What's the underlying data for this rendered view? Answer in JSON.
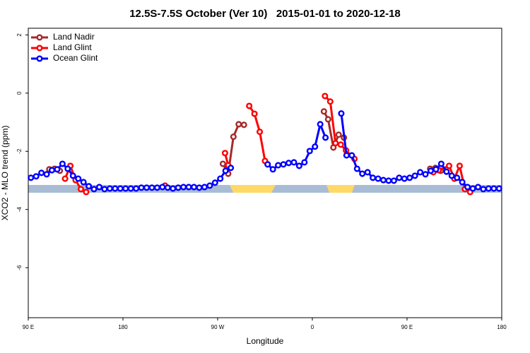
{
  "chart_data": {
    "type": "line",
    "title": "12.5S-7.5S October (Ver 10)   2015-01-01 to 2020-12-18",
    "xlabel": "Longitude",
    "ylabel": "XCO2 - MLO trend (ppm)",
    "xlim": [
      90,
      540
    ],
    "ylim": [
      -7.72,
      2.23
    ],
    "xticks": [
      {
        "value": 90,
        "label": "90 E"
      },
      {
        "value": 180,
        "label": "180"
      },
      {
        "value": 270,
        "label": "90 W"
      },
      {
        "value": 360,
        "label": "0"
      },
      {
        "value": 450,
        "label": "90 E"
      },
      {
        "value": 540,
        "label": "180"
      }
    ],
    "yticks": [
      2,
      0,
      -2,
      -4,
      -6
    ],
    "legend": "top-left",
    "series": [
      {
        "name": "Land Nadir",
        "color": "#a52a2a",
        "x": [
          110,
          115,
          120,
          null,
          275,
          280,
          285,
          290,
          295,
          null,
          371,
          375,
          380,
          385,
          390,
          null,
          472,
          477,
          482
        ],
        "values": [
          -2.62,
          -2.6,
          -2.67,
          null,
          -2.43,
          -2.77,
          -1.5,
          -1.07,
          -1.09,
          null,
          -0.63,
          -0.9,
          -1.87,
          -1.43,
          -1.53,
          null,
          -2.6,
          -2.57,
          -2.67
        ]
      },
      {
        "name": "Land Glint",
        "color": "#ff0000",
        "x": [
          125,
          130,
          135,
          140,
          145,
          null,
          220,
          null,
          277,
          280,
          null,
          300,
          305,
          310,
          315,
          317.5,
          null,
          372,
          377,
          382,
          387,
          392,
          400,
          null,
          475,
          480,
          490,
          495,
          500,
          505,
          510
        ],
        "values": [
          -2.94,
          -2.5,
          -2.99,
          -3.3,
          -3.4,
          null,
          -3.18,
          null,
          -2.06,
          -2.48,
          null,
          -0.44,
          -0.71,
          -1.33,
          -2.33,
          -2.45,
          null,
          -0.1,
          -0.29,
          -1.72,
          -1.77,
          -1.97,
          -2.26,
          null,
          -2.72,
          -2.65,
          -2.5,
          -2.94,
          -2.5,
          -3.3,
          -3.4
        ]
      },
      {
        "name": "Ocean Glint",
        "color": "#0000ff",
        "x": [
          92.5,
          97.5,
          102.5,
          107.5,
          112.5,
          117.5,
          122.5,
          127.5,
          132.5,
          137.5,
          142.5,
          147.5,
          152.5,
          157.5,
          162.5,
          167.5,
          172.5,
          177.5,
          182.5,
          187.5,
          192.5,
          197.5,
          202.5,
          207.5,
          212.5,
          217.5,
          222.5,
          227.5,
          232.5,
          237.5,
          242.5,
          247.5,
          252.5,
          257.5,
          262.5,
          267.5,
          272.5,
          277.5,
          282.5,
          null,
          317.5,
          322.5,
          327.5,
          332.5,
          337.5,
          342.5,
          347.5,
          352.5,
          357.5,
          362.5,
          367.5,
          372.5,
          null,
          387.5,
          392.5,
          397.5,
          402.5,
          407.5,
          412.5,
          417.5,
          422.5,
          427.5,
          432.5,
          437.5,
          442.5,
          447.5,
          452.5,
          457.5,
          462.5,
          467.5,
          472.5,
          477.5,
          482.5,
          487.5,
          492.5,
          497.5,
          502.5,
          507.5,
          512.5,
          517.5,
          522.5,
          527.5,
          532.5,
          537.5
        ],
        "values": [
          -2.91,
          -2.86,
          -2.74,
          -2.79,
          -2.65,
          -2.62,
          -2.43,
          -2.6,
          -2.84,
          -2.94,
          -3.06,
          -3.2,
          -3.3,
          -3.23,
          -3.3,
          -3.28,
          -3.28,
          -3.28,
          -3.28,
          -3.28,
          -3.28,
          -3.25,
          -3.25,
          -3.25,
          -3.25,
          -3.23,
          -3.25,
          -3.28,
          -3.25,
          -3.23,
          -3.23,
          -3.23,
          -3.25,
          -3.23,
          -3.18,
          -3.08,
          -2.94,
          -2.67,
          -2.57,
          null,
          -2.45,
          -2.62,
          -2.48,
          -2.45,
          -2.4,
          -2.38,
          -2.5,
          -2.38,
          -1.99,
          -1.84,
          -1.07,
          -1.53,
          null,
          -0.7,
          -2.14,
          -2.14,
          -2.6,
          -2.77,
          -2.72,
          -2.91,
          -2.94,
          -2.99,
          -3.01,
          -3.01,
          -2.91,
          -2.94,
          -2.91,
          -2.84,
          -2.72,
          -2.79,
          -2.67,
          -2.62,
          -2.43,
          -2.7,
          -2.84,
          -2.91,
          -3.06,
          -3.23,
          -3.28,
          -3.23,
          -3.3,
          -3.28,
          -3.28,
          -3.28
        ]
      }
    ]
  }
}
